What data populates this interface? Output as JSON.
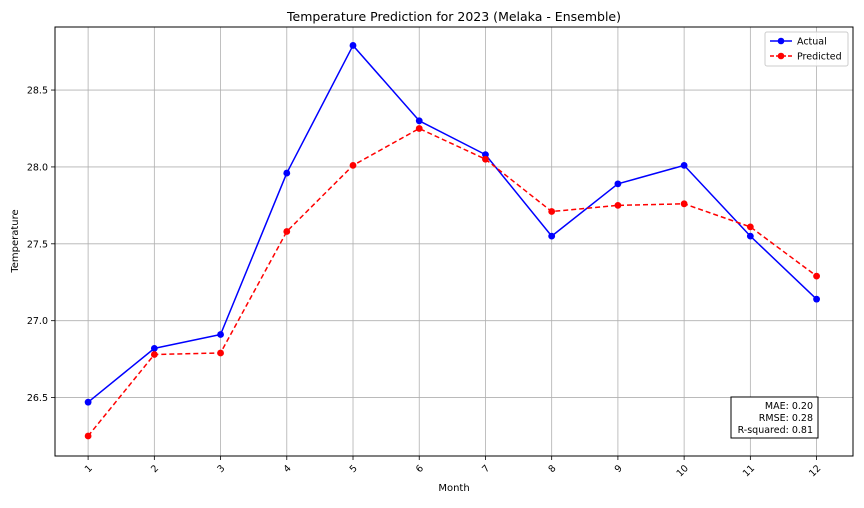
{
  "chart_data": {
    "type": "line",
    "title": "Temperature Prediction for 2023 (Melaka - Ensemble)",
    "xlabel": "Month",
    "ylabel": "Temperature",
    "x": [
      1,
      2,
      3,
      4,
      5,
      6,
      7,
      8,
      9,
      10,
      11,
      12
    ],
    "x_tick_labels": [
      "1",
      "2",
      "3",
      "4",
      "5",
      "6",
      "7",
      "8",
      "9",
      "10",
      "11",
      "12"
    ],
    "y_ticks": [
      26.5,
      27.0,
      27.5,
      28.0,
      28.5
    ],
    "y_tick_labels": [
      "26.5",
      "27.0",
      "27.5",
      "28.0",
      "28.5"
    ],
    "xlim": [
      0.5,
      12.55
    ],
    "ylim": [
      26.12,
      28.91
    ],
    "grid": true,
    "legend_position": "top-right",
    "series": [
      {
        "name": "Actual",
        "color": "#0000ff",
        "line_style": "solid",
        "marker": "circle",
        "values": [
          26.47,
          26.82,
          26.91,
          27.96,
          28.79,
          28.3,
          28.08,
          27.55,
          27.89,
          28.01,
          27.55,
          27.14
        ]
      },
      {
        "name": "Predicted",
        "color": "#ff0000",
        "line_style": "dashed",
        "marker": "circle",
        "values": [
          26.25,
          26.78,
          26.79,
          27.58,
          28.01,
          28.25,
          28.05,
          27.71,
          27.75,
          27.76,
          27.61,
          27.29
        ]
      }
    ],
    "annotation": {
      "lines": [
        "MAE: 0.20",
        "RMSE: 0.28",
        "R-squared: 0.81"
      ],
      "position": "bottom-right"
    }
  }
}
